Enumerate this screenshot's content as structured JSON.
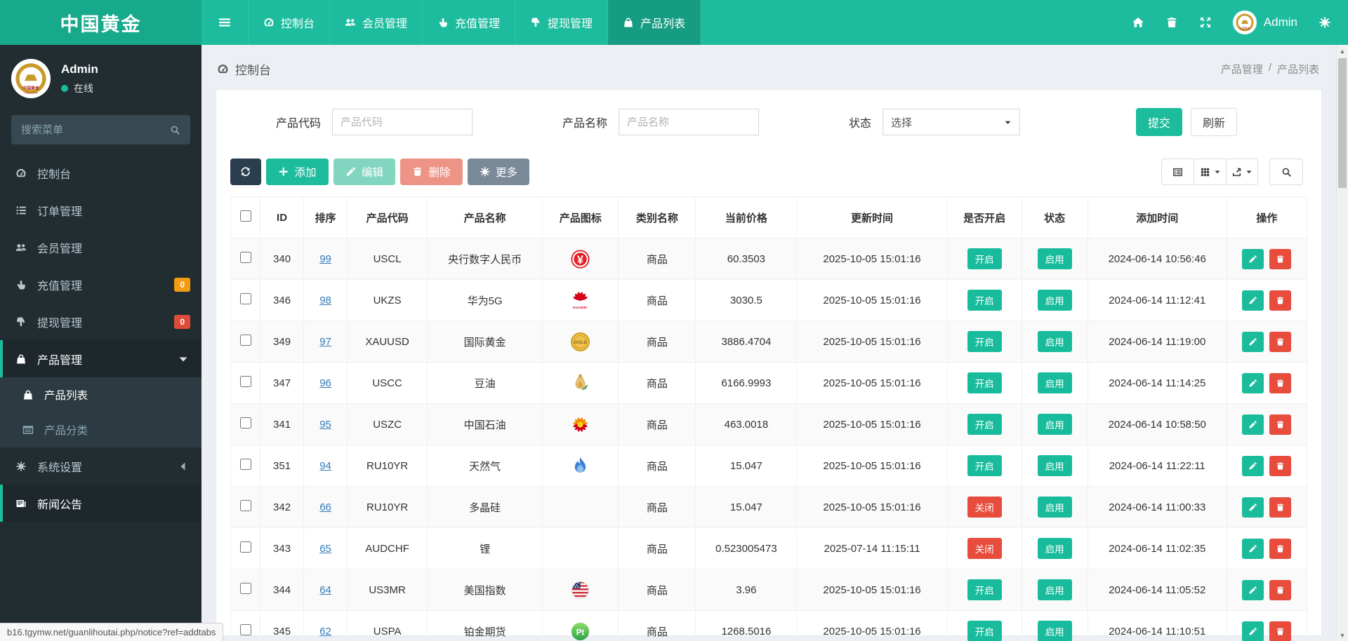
{
  "navbar": {
    "brand": "中国黄金",
    "user": "Admin",
    "menu": [
      {
        "key": "dashboard",
        "label": "控制台",
        "icon": "gauge-icon",
        "active": false
      },
      {
        "key": "members",
        "label": "会员管理",
        "icon": "users-icon",
        "active": false
      },
      {
        "key": "recharge",
        "label": "充值管理",
        "icon": "hand-up-icon",
        "active": false
      },
      {
        "key": "withdraw",
        "label": "提现管理",
        "icon": "hand-down-icon",
        "active": false
      },
      {
        "key": "product-list",
        "label": "产品列表",
        "icon": "bag-icon",
        "active": true
      }
    ]
  },
  "sidebar": {
    "user": {
      "name": "Admin",
      "status": "在线"
    },
    "search_placeholder": "搜索菜单",
    "items": [
      {
        "key": "dashboard",
        "label": "控制台",
        "icon": "gauge-icon"
      },
      {
        "key": "orders",
        "label": "订单管理",
        "icon": "list-icon"
      },
      {
        "key": "members",
        "label": "会员管理",
        "icon": "users-icon"
      },
      {
        "key": "recharge",
        "label": "充值管理",
        "icon": "hand-up-icon",
        "badge": {
          "text": "0",
          "color": "#f39c12"
        }
      },
      {
        "key": "withdraw",
        "label": "提现管理",
        "icon": "hand-down-icon",
        "badge": {
          "text": "0",
          "color": "#dd4b39"
        }
      },
      {
        "key": "product-management",
        "label": "产品管理",
        "icon": "bag-icon",
        "active": true,
        "caret": "down",
        "children": [
          {
            "key": "product-list",
            "label": "产品列表",
            "icon": "bag-icon",
            "active": true
          },
          {
            "key": "product-category",
            "label": "产品分类",
            "icon": "category-icon",
            "active": false
          }
        ]
      },
      {
        "key": "system-settings",
        "label": "系统设置",
        "icon": "gears-icon",
        "caret": "left"
      },
      {
        "key": "news",
        "label": "新闻公告",
        "icon": "newspaper-icon",
        "hovered": true
      }
    ]
  },
  "breadcrumb": {
    "section": "控制台",
    "parent": "产品管理",
    "separator": "/",
    "current": "产品列表"
  },
  "filters": {
    "code": {
      "label": "产品代码",
      "placeholder": "产品代码",
      "value": ""
    },
    "name": {
      "label": "产品名称",
      "placeholder": "产品名称",
      "value": ""
    },
    "status": {
      "label": "状态",
      "value": "选择"
    }
  },
  "actions": {
    "submit": "提交",
    "refresh": "刷新",
    "add": "添加",
    "edit": "编辑",
    "delete": "删除",
    "more": "更多"
  },
  "table": {
    "columns": [
      "",
      "ID",
      "排序",
      "产品代码",
      "产品名称",
      "产品图标",
      "类别名称",
      "当前价格",
      "更新时间",
      "是否开启",
      "状态",
      "添加时间",
      "操作"
    ],
    "rows": [
      {
        "id": "340",
        "sort": "99",
        "code": "USCL",
        "name": "央行数字人民币",
        "icon": "digital-yuan-icon",
        "category": "商品",
        "price": "60.3503",
        "updated": "2025-10-05 15:01:16",
        "open": "开启",
        "status": "启用",
        "added": "2024-06-14 10:56:46"
      },
      {
        "id": "346",
        "sort": "98",
        "code": "UKZS",
        "name": "华为5G",
        "icon": "huawei-icon",
        "category": "商品",
        "price": "3030.5",
        "updated": "2025-10-05 15:01:16",
        "open": "开启",
        "status": "启用",
        "added": "2024-06-14 11:12:41"
      },
      {
        "id": "349",
        "sort": "97",
        "code": "XAUUSD",
        "name": "国际黄金",
        "icon": "gold-coin-icon",
        "category": "商品",
        "price": "3886.4704",
        "updated": "2025-10-05 15:01:16",
        "open": "开启",
        "status": "启用",
        "added": "2024-06-14 11:19:00"
      },
      {
        "id": "347",
        "sort": "96",
        "code": "USCC",
        "name": "豆油",
        "icon": "oil-bottle-icon",
        "category": "商品",
        "price": "6166.9993",
        "updated": "2025-10-05 15:01:16",
        "open": "开启",
        "status": "启用",
        "added": "2024-06-14 11:14:25"
      },
      {
        "id": "341",
        "sort": "95",
        "code": "USZC",
        "name": "中国石油",
        "icon": "petrochina-icon",
        "category": "商品",
        "price": "463.0018",
        "updated": "2025-10-05 15:01:16",
        "open": "开启",
        "status": "启用",
        "added": "2024-06-14 10:58:50"
      },
      {
        "id": "351",
        "sort": "94",
        "code": "RU10YR",
        "name": "天然气",
        "icon": "gas-flame-icon",
        "category": "商品",
        "price": "15.047",
        "updated": "2025-10-05 15:01:16",
        "open": "开启",
        "status": "启用",
        "added": "2024-06-14 11:22:11"
      },
      {
        "id": "342",
        "sort": "66",
        "code": "RU10YR",
        "name": "多晶硅",
        "icon": "",
        "category": "商品",
        "price": "15.047",
        "updated": "2025-10-05 15:01:16",
        "open": "关闭",
        "status": "启用",
        "added": "2024-06-14 11:00:33"
      },
      {
        "id": "343",
        "sort": "65",
        "code": "AUDCHF",
        "name": "锂",
        "icon": "",
        "category": "商品",
        "price": "0.523005473",
        "updated": "2025-07-14 11:15:11",
        "open": "关闭",
        "status": "启用",
        "added": "2024-06-14 11:02:35"
      },
      {
        "id": "344",
        "sort": "64",
        "code": "US3MR",
        "name": "美国指数",
        "icon": "us-flag-icon",
        "category": "商品",
        "price": "3.96",
        "updated": "2025-10-05 15:01:16",
        "open": "开启",
        "status": "启用",
        "added": "2024-06-14 11:05:52"
      },
      {
        "id": "345",
        "sort": "62",
        "code": "USPA",
        "name": "铂金期货",
        "icon": "platinum-icon",
        "category": "商品",
        "price": "1268.5016",
        "updated": "2025-10-05 15:01:16",
        "open": "开启",
        "status": "启用",
        "added": "2024-06-14 11:10:51"
      }
    ]
  },
  "statusbar": {
    "url": "b16.tgymw.net/guanlihoutai.php/notice?ref=addtabs"
  },
  "colors": {
    "accent": "#1abc9c",
    "navbar": "#1dbc9e",
    "sidebar": "#222d32",
    "open_badge": "#18bc9c",
    "closed_badge": "#e74c3c",
    "warning_badge": "#f39c12",
    "danger_badge": "#dd4b39",
    "link": "#337ab7"
  }
}
